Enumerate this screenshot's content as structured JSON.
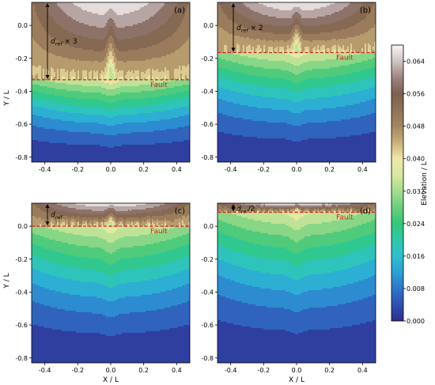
{
  "chart_data": {
    "type": "heatmap",
    "colorbar": {
      "label": "Elevation / L",
      "range": [
        0,
        0.068
      ],
      "ticks": [
        "0.000",
        "0.008",
        "0.016",
        "0.024",
        "0.032",
        "0.040",
        "0.048",
        "0.056",
        "0.064"
      ],
      "tick_values": [
        0,
        0.008,
        0.016,
        0.024,
        0.032,
        0.04,
        0.048,
        0.056,
        0.064
      ],
      "stops": [
        {
          "v": 0.0,
          "c": "#2c2f8c"
        },
        {
          "v": 0.004,
          "c": "#2f4fb3"
        },
        {
          "v": 0.008,
          "c": "#2e77c9"
        },
        {
          "v": 0.012,
          "c": "#2b9fd6"
        },
        {
          "v": 0.016,
          "c": "#2dbfcf"
        },
        {
          "v": 0.02,
          "c": "#2ec9a8"
        },
        {
          "v": 0.024,
          "c": "#33c778"
        },
        {
          "v": 0.028,
          "c": "#6bcf7e"
        },
        {
          "v": 0.032,
          "c": "#a6dc8e"
        },
        {
          "v": 0.036,
          "c": "#d8ea9e"
        },
        {
          "v": 0.04,
          "c": "#f0e7a8"
        },
        {
          "v": 0.044,
          "c": "#c9b07a"
        },
        {
          "v": 0.048,
          "c": "#a38660"
        },
        {
          "v": 0.056,
          "c": "#7d5f4f"
        },
        {
          "v": 0.06,
          "c": "#9c8582"
        },
        {
          "v": 0.064,
          "c": "#cfc4c3"
        },
        {
          "v": 0.068,
          "c": "#f8f5f5"
        }
      ]
    },
    "xlim": [
      -0.48,
      0.48
    ],
    "ylim": [
      -0.83,
      0.14
    ],
    "x_ticks": [
      "-0.4",
      "-0.2",
      "0.0",
      "0.2",
      "0.4"
    ],
    "x_tick_values": [
      -0.4,
      -0.2,
      0.0,
      0.2,
      0.4
    ],
    "y_ticks": [
      "0.0",
      "-0.2",
      "-0.4",
      "-0.6",
      "-0.8"
    ],
    "y_tick_values": [
      0.0,
      -0.2,
      -0.4,
      -0.6,
      -0.8
    ],
    "xlabel": "X / L",
    "ylabel": "Y / L",
    "fault_label": "Fault",
    "fault_color": "#cc2222",
    "panels": [
      {
        "id": "a",
        "label": "(a)",
        "fault_y": -0.33,
        "arrow_label": "d_ref × 3",
        "arrow_base": "d",
        "arrow_sub": "ref",
        "arrow_suffix": " × 3"
      },
      {
        "id": "b",
        "label": "(b)",
        "fault_y": -0.165,
        "arrow_label": "d_ref × 2",
        "arrow_base": "d",
        "arrow_sub": "ref",
        "arrow_suffix": " × 2"
      },
      {
        "id": "c",
        "label": "(c)",
        "fault_y": 0.0,
        "arrow_label": "d_ref",
        "arrow_base": "d",
        "arrow_sub": "ref",
        "arrow_suffix": ""
      },
      {
        "id": "d",
        "label": "(d)",
        "fault_y": 0.085,
        "arrow_label": "d_ref/2",
        "arrow_base": "d",
        "arrow_sub": "ref",
        "arrow_suffix": "/2"
      }
    ]
  }
}
